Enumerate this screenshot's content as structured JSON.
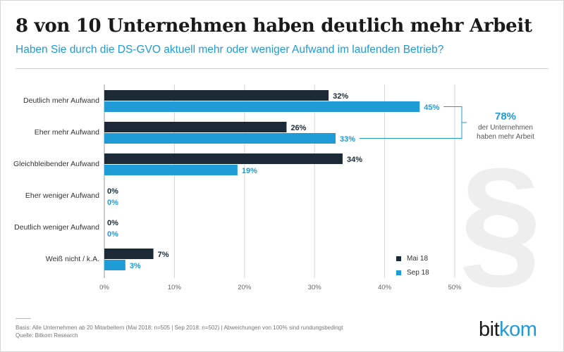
{
  "title": "8 von 10 Unternehmen haben deutlich mehr Arbeit",
  "subtitle": "Haben Sie durch die DS-GVO aktuell mehr oder weniger Aufwand im laufenden Betrieb?",
  "colors": {
    "dark": "#1b2a36",
    "blue": "#1f9bd7",
    "grid": "#d5d5d5",
    "paragraph": "#eeeeee"
  },
  "chart_data": {
    "type": "bar",
    "orientation": "horizontal",
    "categories": [
      "Deutlich mehr Aufwand",
      "Eher mehr Aufwand",
      "Gleichbleibender Aufwand",
      "Eher weniger Aufwand",
      "Deutlich weniger Aufwand",
      "Weiß nicht / k.A."
    ],
    "series": [
      {
        "name": "Mai 18",
        "values": [
          32,
          26,
          34,
          0,
          0,
          7
        ],
        "color": "#1b2a36"
      },
      {
        "name": "Sep 18",
        "values": [
          45,
          33,
          19,
          0,
          0,
          3
        ],
        "color": "#1f9bd7"
      }
    ],
    "xlim": [
      0,
      50
    ],
    "xticks": [
      "0%",
      "10%",
      "20%",
      "30%",
      "40%",
      "50%"
    ],
    "unit": "%",
    "grid": true,
    "legend": "bottom-right"
  },
  "callout": {
    "value": "78%",
    "text1": "der Unternehmen",
    "text2": "haben mehr Arbeit"
  },
  "decoration": {
    "paragraph_symbol": "§"
  },
  "footer": {
    "basis": "Basis: Alle Unternehmen ab 20 Mitarbeitern (Mai 2018: n=505 | Sep 2018: n=502) | Abweichungen von 100% sind rundungsbedingt",
    "source": "Quelle: Bitkom Research"
  },
  "logo": {
    "part1": "bit",
    "part2": "kom"
  }
}
